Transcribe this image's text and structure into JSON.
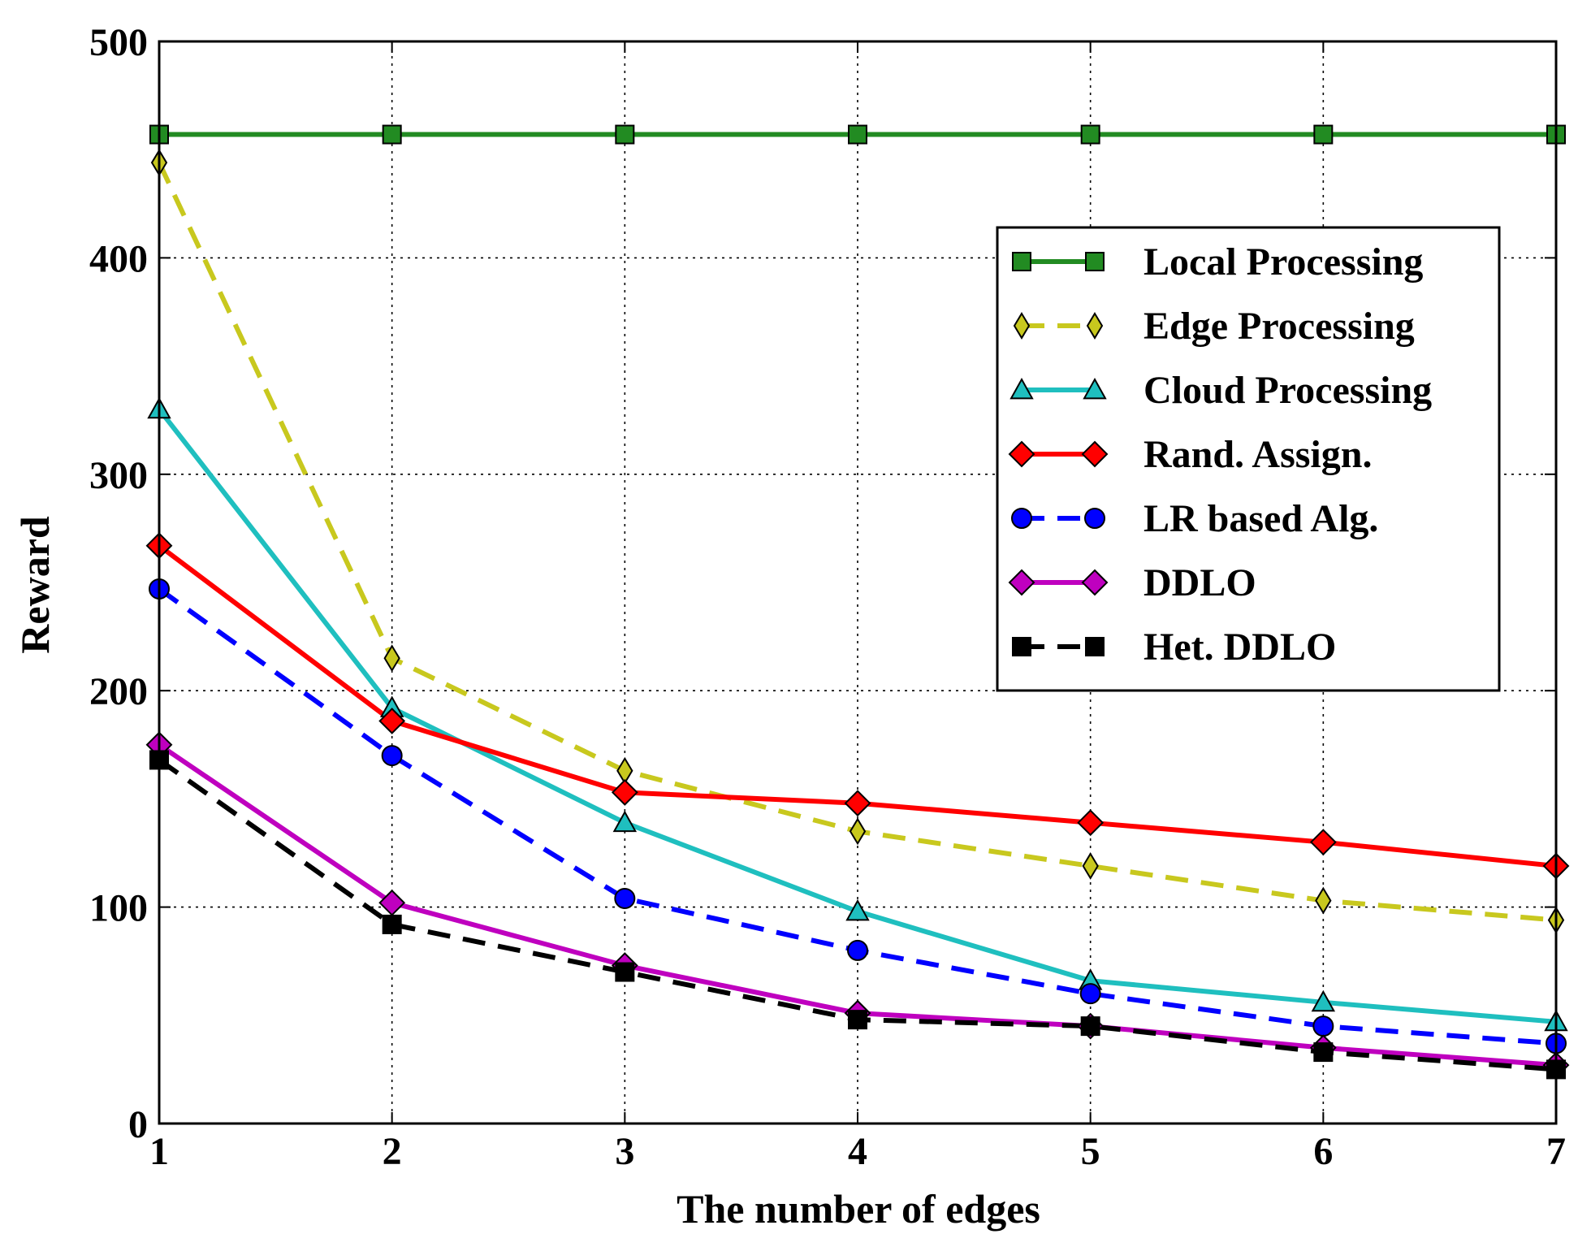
{
  "chart_data": {
    "type": "line",
    "title": "",
    "xlabel": "The number of edges",
    "ylabel": "Reward",
    "x": [
      1,
      2,
      3,
      4,
      5,
      6,
      7
    ],
    "xlim": [
      1,
      7
    ],
    "ylim": [
      0,
      500
    ],
    "xticks": [
      "1",
      "2",
      "3",
      "4",
      "5",
      "6",
      "7"
    ],
    "yticks": [
      "0",
      "100",
      "200",
      "300",
      "400",
      "500"
    ],
    "grid": true,
    "legend_position": "upper right",
    "series": [
      {
        "name": "Local Processing",
        "color": "#228b22",
        "dash": "solid",
        "marker": "square",
        "values": [
          457,
          457,
          457,
          457,
          457,
          457,
          457
        ]
      },
      {
        "name": "Edge Processing",
        "color": "#c8c81e",
        "dash": "dashed",
        "marker": "thin-diamond",
        "values": [
          444,
          215,
          163,
          135,
          119,
          103,
          94
        ]
      },
      {
        "name": "Cloud Processing",
        "color": "#1fbfbf",
        "dash": "solid",
        "marker": "triangle",
        "values": [
          330,
          192,
          139,
          98,
          66,
          56,
          47
        ]
      },
      {
        "name": "Rand. Assign.",
        "color": "#ff0000",
        "dash": "solid",
        "marker": "diamond",
        "values": [
          267,
          186,
          153,
          148,
          139,
          130,
          119
        ]
      },
      {
        "name": "LR based Alg.",
        "color": "#0000ff",
        "dash": "dashed",
        "marker": "circle",
        "values": [
          247,
          170,
          104,
          80,
          60,
          45,
          37
        ]
      },
      {
        "name": "DDLO",
        "color": "#bf00bf",
        "dash": "solid",
        "marker": "diamond",
        "values": [
          175,
          102,
          73,
          51,
          45,
          35,
          27
        ]
      },
      {
        "name": "Het. DDLO",
        "color": "#000000",
        "dash": "dashed",
        "marker": "square",
        "values": [
          168,
          92,
          70,
          48,
          45,
          33,
          25
        ]
      }
    ]
  }
}
